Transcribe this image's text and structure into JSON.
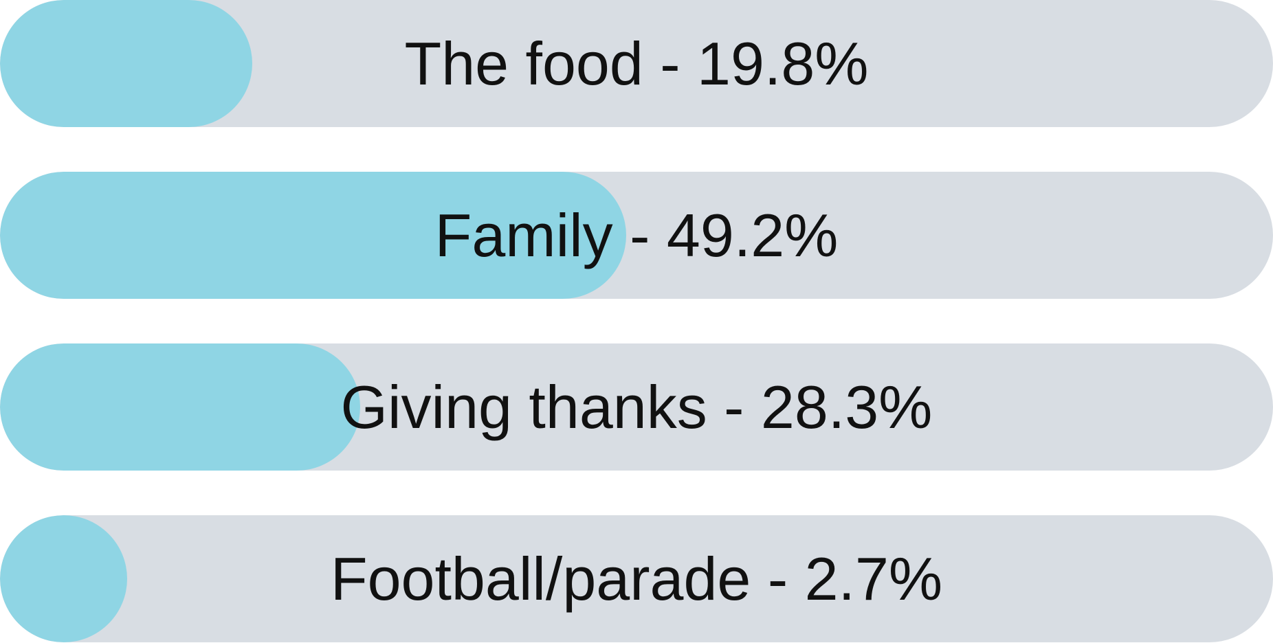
{
  "chart_data": {
    "type": "bar",
    "orientation": "horizontal",
    "categories": [
      "The food",
      "Family",
      "Giving thanks",
      "Football/parade"
    ],
    "values": [
      19.8,
      49.2,
      28.3,
      2.7
    ],
    "labels": [
      "The food - 19.8%",
      "Family - 49.2%",
      "Giving thanks - 28.3%",
      "Football/parade - 2.7%"
    ],
    "xlim": [
      0,
      100
    ],
    "unit": "%",
    "legend": "none",
    "grid": false,
    "colors": {
      "fill": "#8fd5e4",
      "track": "#d8dde3",
      "text": "#111111"
    }
  }
}
